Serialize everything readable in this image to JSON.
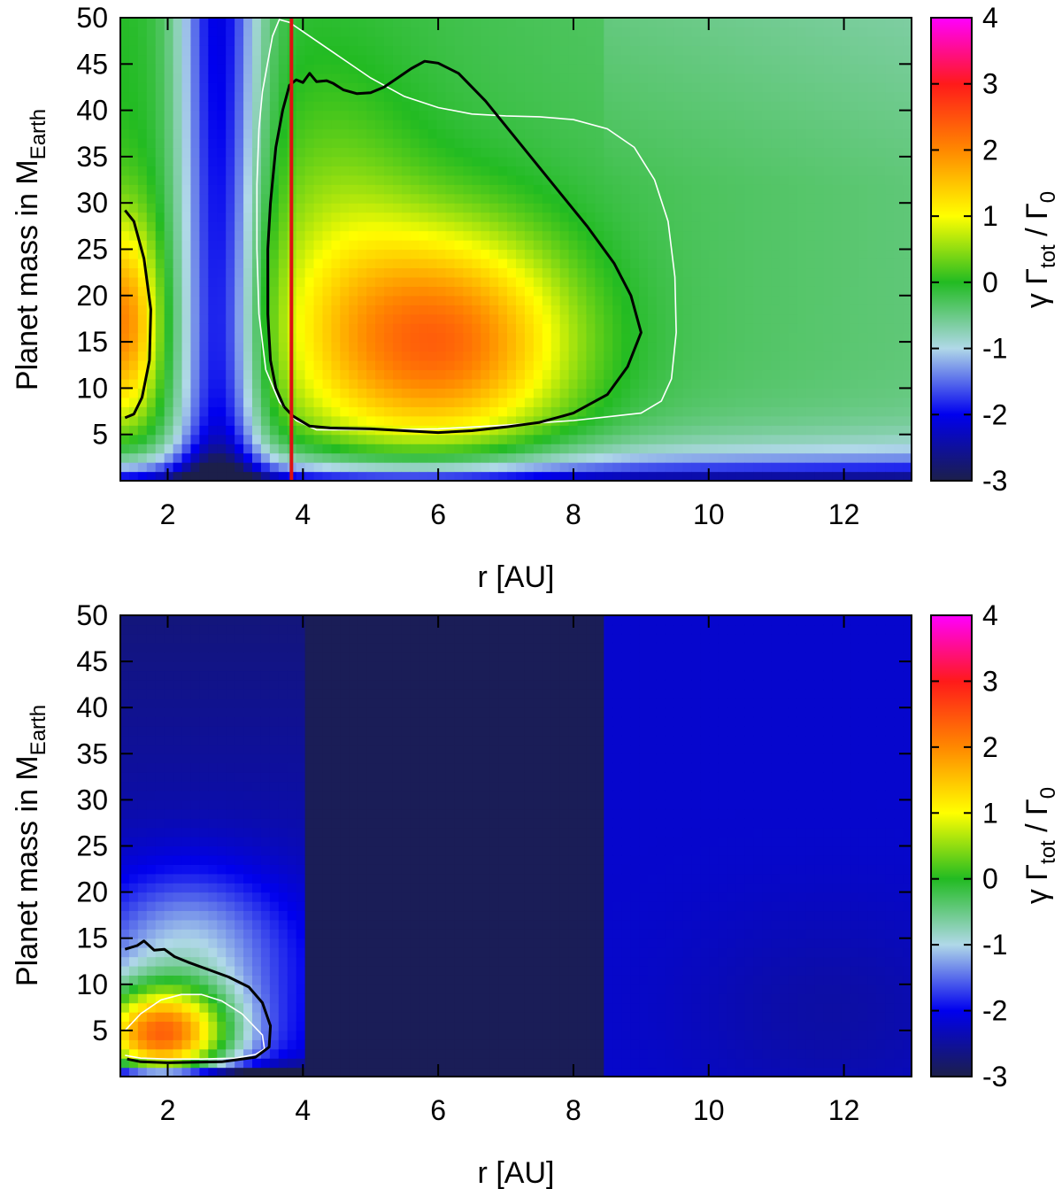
{
  "chart_data": [
    {
      "type": "heatmap",
      "panel": "top",
      "xlabel": "r [AU]",
      "ylabel_main": "Planet mass in M",
      "ylabel_sub": "Earth",
      "xlim": [
        1.3,
        13.0
      ],
      "ylim": [
        0,
        50
      ],
      "x_ticks": [
        2,
        4,
        6,
        8,
        10,
        12
      ],
      "y_ticks": [
        5,
        10,
        15,
        20,
        25,
        30,
        35,
        40,
        45,
        50
      ],
      "colorbar": {
        "range": [
          -3,
          4
        ],
        "ticks": [
          -3,
          -2,
          -1,
          0,
          1,
          2,
          3,
          4
        ],
        "label_prefix": "γ Γ",
        "label_sub1": "tot",
        "label_mid": " / Γ",
        "label_sub2": "0",
        "colors": [
          "#1c1f4a",
          "#0000ee",
          "#b0d8e8",
          "#22bb22",
          "#ffff00",
          "#ff8800",
          "#ff1a1a",
          "#ff00ff"
        ]
      },
      "zero_contour_black": [
        [
          [
            1.37,
            29.2
          ],
          [
            1.5,
            28.0
          ],
          [
            1.65,
            24.0
          ],
          [
            1.75,
            18.5
          ],
          [
            1.73,
            13.0
          ],
          [
            1.62,
            9.0
          ],
          [
            1.5,
            7.2
          ],
          [
            1.37,
            6.8
          ]
        ],
        [
          [
            3.72,
            8.0
          ],
          [
            3.85,
            7.0
          ],
          [
            4.1,
            5.9
          ],
          [
            4.4,
            5.7
          ],
          [
            5.0,
            5.6
          ],
          [
            5.5,
            5.4
          ],
          [
            6.0,
            5.2
          ],
          [
            6.5,
            5.4
          ],
          [
            7.0,
            5.8
          ],
          [
            7.5,
            6.3
          ],
          [
            8.0,
            7.3
          ],
          [
            8.5,
            9.3
          ],
          [
            8.8,
            12.3
          ],
          [
            9.0,
            16.0
          ],
          [
            8.85,
            20.0
          ],
          [
            8.6,
            23.5
          ],
          [
            8.2,
            27.5
          ],
          [
            7.7,
            32.0
          ],
          [
            7.2,
            36.5
          ],
          [
            6.7,
            41.0
          ],
          [
            6.3,
            44.0
          ],
          [
            6.0,
            45.1
          ],
          [
            5.8,
            45.3
          ],
          [
            5.6,
            44.5
          ],
          [
            5.4,
            43.5
          ],
          [
            5.2,
            42.5
          ],
          [
            5.0,
            41.9
          ],
          [
            4.8,
            41.8
          ],
          [
            4.6,
            42.2
          ],
          [
            4.45,
            42.9
          ],
          [
            4.35,
            43.2
          ],
          [
            4.2,
            43.1
          ],
          [
            4.1,
            44.0
          ],
          [
            4.0,
            43.0
          ],
          [
            3.9,
            43.3
          ],
          [
            3.8,
            42.7
          ],
          [
            3.7,
            40.0
          ],
          [
            3.6,
            36.0
          ],
          [
            3.52,
            30.0
          ],
          [
            3.48,
            25.0
          ],
          [
            3.48,
            18.0
          ],
          [
            3.52,
            13.0
          ],
          [
            3.6,
            10.0
          ],
          [
            3.72,
            8.0
          ]
        ]
      ],
      "zero_contour_white": [
        [
          [
            3.45,
            44.0
          ],
          [
            3.55,
            48.0
          ],
          [
            3.65,
            49.8
          ],
          [
            3.8,
            49.5
          ],
          [
            4.2,
            47.5
          ],
          [
            4.6,
            45.5
          ],
          [
            5.0,
            43.5
          ],
          [
            5.5,
            41.5
          ],
          [
            6.0,
            40.3
          ],
          [
            6.5,
            39.6
          ],
          [
            7.0,
            39.4
          ],
          [
            7.5,
            39.3
          ],
          [
            8.0,
            39.0
          ],
          [
            8.5,
            38.0
          ],
          [
            8.9,
            36.0
          ],
          [
            9.2,
            32.5
          ],
          [
            9.4,
            28.0
          ],
          [
            9.5,
            22.0
          ],
          [
            9.52,
            16.0
          ],
          [
            9.45,
            11.0
          ],
          [
            9.3,
            8.6
          ],
          [
            9.0,
            7.3
          ],
          [
            8.5,
            6.9
          ],
          [
            8.0,
            6.5
          ],
          [
            7.0,
            6.0
          ],
          [
            6.0,
            5.6
          ],
          [
            5.0,
            5.5
          ],
          [
            4.2,
            5.5
          ],
          [
            3.9,
            6.5
          ],
          [
            3.65,
            8.5
          ],
          [
            3.45,
            12.0
          ],
          [
            3.35,
            18.0
          ],
          [
            3.32,
            25.0
          ],
          [
            3.32,
            32.0
          ],
          [
            3.35,
            38.0
          ],
          [
            3.4,
            42.0
          ],
          [
            3.45,
            44.0
          ]
        ]
      ],
      "vertical_line": {
        "x": 3.83,
        "color": "#dd1111"
      }
    },
    {
      "type": "heatmap",
      "panel": "bottom",
      "xlabel": "r [AU]",
      "ylabel_main": "Planet mass in M",
      "ylabel_sub": "Earth",
      "xlim": [
        1.3,
        13.0
      ],
      "ylim": [
        0,
        50
      ],
      "x_ticks": [
        2,
        4,
        6,
        8,
        10,
        12
      ],
      "y_ticks": [
        5,
        10,
        15,
        20,
        25,
        30,
        35,
        40,
        45,
        50
      ],
      "colorbar": {
        "range": [
          -3,
          4
        ],
        "ticks": [
          -3,
          -2,
          -1,
          0,
          1,
          2,
          3,
          4
        ],
        "label_prefix": "γ Γ",
        "label_sub1": "tot",
        "label_mid": " / Γ",
        "label_sub2": "0",
        "colors": [
          "#1c1f4a",
          "#0000ee",
          "#b0d8e8",
          "#22bb22",
          "#ffff00",
          "#ff8800",
          "#ff1a1a",
          "#ff00ff"
        ]
      },
      "zero_contour_black": [
        [
          [
            1.37,
            13.8
          ],
          [
            1.55,
            14.2
          ],
          [
            1.65,
            14.7
          ],
          [
            1.8,
            13.7
          ],
          [
            1.95,
            13.8
          ],
          [
            2.1,
            13.0
          ],
          [
            2.3,
            12.4
          ],
          [
            2.6,
            11.6
          ],
          [
            2.9,
            10.8
          ],
          [
            3.2,
            9.7
          ],
          [
            3.4,
            8.0
          ],
          [
            3.52,
            5.5
          ],
          [
            3.5,
            3.2
          ],
          [
            3.3,
            2.1
          ],
          [
            2.8,
            1.6
          ],
          [
            2.0,
            1.5
          ],
          [
            1.6,
            1.6
          ],
          [
            1.4,
            1.9
          ]
        ]
      ],
      "zero_contour_white": [
        [
          [
            1.37,
            5.0
          ],
          [
            1.6,
            6.8
          ],
          [
            1.9,
            8.3
          ],
          [
            2.2,
            8.9
          ],
          [
            2.5,
            8.9
          ],
          [
            2.8,
            8.2
          ],
          [
            3.1,
            6.8
          ],
          [
            3.4,
            4.5
          ],
          [
            3.43,
            3.0
          ],
          [
            3.3,
            2.4
          ],
          [
            3.0,
            2.0
          ],
          [
            2.5,
            1.9
          ],
          [
            2.0,
            1.9
          ],
          [
            1.6,
            2.0
          ],
          [
            1.37,
            2.3
          ]
        ]
      ]
    }
  ]
}
